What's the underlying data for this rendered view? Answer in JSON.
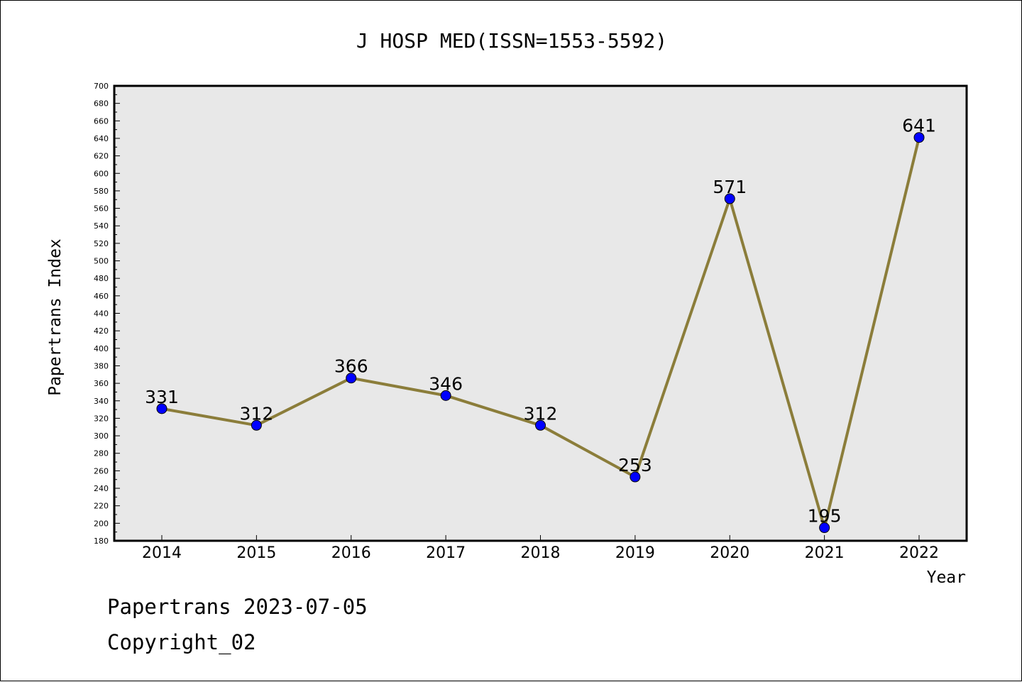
{
  "chart_data": {
    "type": "line",
    "title": "J HOSP MED(ISSN=1553-5592)",
    "xlabel": "Year",
    "ylabel": "Papertrans Index",
    "x": [
      "2014",
      "2015",
      "2016",
      "2017",
      "2018",
      "2019",
      "2020",
      "2021",
      "2022"
    ],
    "series": [
      {
        "values": [
          331,
          312,
          366,
          346,
          312,
          253,
          571,
          195,
          641
        ]
      }
    ],
    "ylim": [
      180,
      700
    ],
    "ytick_step": 20,
    "yticks": [
      "180",
      "200",
      "220",
      "240",
      "260",
      "280",
      "300",
      "320",
      "340",
      "360",
      "380",
      "400",
      "420",
      "440",
      "460",
      "480",
      "500",
      "520",
      "540",
      "560",
      "580",
      "600",
      "620",
      "640",
      "660",
      "680",
      "700"
    ],
    "grid": false,
    "legend": "none",
    "colors": {
      "line": "#8b7d3a",
      "marker": "#0000ff",
      "plot_bg": "#e8e8e8"
    }
  },
  "footer": {
    "line1": "Papertrans 2023-07-05",
    "line2": "Copyright_02"
  }
}
